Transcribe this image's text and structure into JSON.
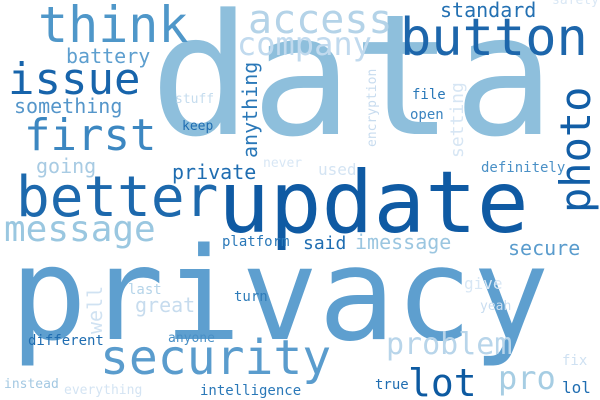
{
  "words": [
    {
      "text": "data",
      "color": "#8ebfdc",
      "orientation": "horizontal"
    },
    {
      "text": "privacy",
      "color": "#5e9fcf",
      "orientation": "horizontal"
    },
    {
      "text": "update",
      "color": "#0f5aa3",
      "orientation": "horizontal"
    },
    {
      "text": "better",
      "color": "#1d69ad",
      "orientation": "horizontal"
    },
    {
      "text": "security",
      "color": "#5a9ccd",
      "orientation": "horizontal"
    },
    {
      "text": "button",
      "color": "#1d66ab",
      "orientation": "horizontal"
    },
    {
      "text": "think",
      "color": "#4f97c9",
      "orientation": "horizontal"
    },
    {
      "text": "access",
      "color": "#b4d3e8",
      "orientation": "horizontal"
    },
    {
      "text": "company",
      "color": "#c1daee",
      "orientation": "horizontal"
    },
    {
      "text": "issue",
      "color": "#1764ab",
      "orientation": "horizontal"
    },
    {
      "text": "first",
      "color": "#3c87c1",
      "orientation": "horizontal"
    },
    {
      "text": "message",
      "color": "#9ac7e0",
      "orientation": "horizontal"
    },
    {
      "text": "photo",
      "color": "#125ea6",
      "orientation": "vertical"
    },
    {
      "text": "lot",
      "color": "#0d5aa1",
      "orientation": "horizontal"
    },
    {
      "text": "problem",
      "color": "#b8d5ea",
      "orientation": "horizontal"
    },
    {
      "text": "pro",
      "color": "#a6cde3",
      "orientation": "horizontal"
    },
    {
      "text": "standard",
      "color": "#2370b2",
      "orientation": "horizontal"
    },
    {
      "text": "battery",
      "color": "#5e9fcf",
      "orientation": "horizontal"
    },
    {
      "text": "something",
      "color": "#5596ca",
      "orientation": "horizontal"
    },
    {
      "text": "going",
      "color": "#a8cbe3",
      "orientation": "horizontal"
    },
    {
      "text": "private",
      "color": "#1f6db1",
      "orientation": "horizontal"
    },
    {
      "text": "anything",
      "color": "#2a78b8",
      "orientation": "vertical"
    },
    {
      "text": "imessage",
      "color": "#9bc6e0",
      "orientation": "horizontal"
    },
    {
      "text": "secure",
      "color": "#5a9ccd",
      "orientation": "horizontal"
    },
    {
      "text": "setting",
      "color": "#d7e6f4",
      "orientation": "vertical"
    },
    {
      "text": "encryption",
      "color": "#c8dcef",
      "orientation": "vertical"
    },
    {
      "text": "file",
      "color": "#2a78b8",
      "orientation": "horizontal"
    },
    {
      "text": "open",
      "color": "#3b84c0",
      "orientation": "horizontal"
    },
    {
      "text": "definitely",
      "color": "#4a90c6",
      "orientation": "horizontal"
    },
    {
      "text": "stuff",
      "color": "#c5dcee",
      "orientation": "horizontal"
    },
    {
      "text": "keep",
      "color": "#1f6db1",
      "orientation": "horizontal"
    },
    {
      "text": "never",
      "color": "#d8e7f5",
      "orientation": "horizontal"
    },
    {
      "text": "used",
      "color": "#d4e4f3",
      "orientation": "horizontal"
    },
    {
      "text": "platform",
      "color": "#2a78b8",
      "orientation": "horizontal"
    },
    {
      "text": "said",
      "color": "#1f6db1",
      "orientation": "horizontal"
    },
    {
      "text": "well",
      "color": "#d0e2f2",
      "orientation": "vertical"
    },
    {
      "text": "great",
      "color": "#c7dcee",
      "orientation": "horizontal"
    },
    {
      "text": "last",
      "color": "#b5d4e9",
      "orientation": "horizontal"
    },
    {
      "text": "turn",
      "color": "#2f7cb9",
      "orientation": "horizontal"
    },
    {
      "text": "give",
      "color": "#d8e7f5",
      "orientation": "horizontal"
    },
    {
      "text": "yeah",
      "color": "#c9ddf0",
      "orientation": "horizontal"
    },
    {
      "text": "anyone",
      "color": "#4a90c6",
      "orientation": "horizontal"
    },
    {
      "text": "different",
      "color": "#1f6db1",
      "orientation": "horizontal"
    },
    {
      "text": "fix",
      "color": "#cfe1f2",
      "orientation": "horizontal"
    },
    {
      "text": "true",
      "color": "#1f6db1",
      "orientation": "horizontal"
    },
    {
      "text": "lol",
      "color": "#1f6db1",
      "orientation": "horizontal"
    },
    {
      "text": "instead",
      "color": "#a3c8e2",
      "orientation": "horizontal"
    },
    {
      "text": "everything",
      "color": "#d4e4f3",
      "orientation": "horizontal"
    },
    {
      "text": "intelligence",
      "color": "#2a78b8",
      "orientation": "horizontal"
    },
    {
      "text": "safety",
      "color": "#dae8f5",
      "orientation": "horizontal"
    }
  ]
}
